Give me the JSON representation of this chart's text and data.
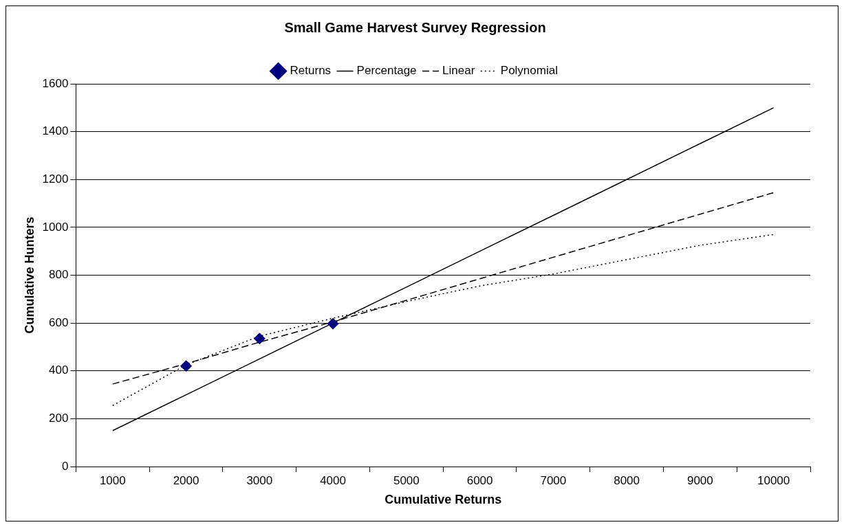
{
  "chart_data": {
    "type": "line",
    "title": "Small Game Harvest Survey Regression",
    "xlabel": "Cumulative Returns",
    "ylabel": "Cumulative Hunters",
    "categories": [
      "1000",
      "2000",
      "3000",
      "4000",
      "5000",
      "6000",
      "7000",
      "8000",
      "9000",
      "10000"
    ],
    "series": [
      {
        "name": "Returns",
        "type": "scatter",
        "color": "#000080",
        "marker": "diamond",
        "values": [
          null,
          420,
          535,
          597,
          null,
          null,
          null,
          null,
          null,
          null
        ]
      },
      {
        "name": "Percentage",
        "color": "#000000",
        "line_style": "solid",
        "values": [
          150,
          300,
          450,
          600,
          750,
          900,
          1050,
          1200,
          1350,
          1500
        ]
      },
      {
        "name": "Linear",
        "color": "#000000",
        "line_style": "dashed",
        "values": [
          345,
          430,
          520,
          605,
          695,
          785,
          875,
          965,
          1055,
          1145
        ]
      },
      {
        "name": "Polynomial",
        "color": "#000000",
        "line_style": "dotted",
        "values": [
          255,
          425,
          545,
          620,
          690,
          755,
          805,
          865,
          925,
          970
        ]
      }
    ],
    "ylim": [
      0,
      1600
    ],
    "yticks": [
      0,
      200,
      400,
      600,
      800,
      1000,
      1200,
      1400,
      1600
    ],
    "grid": "y",
    "legend": "top"
  }
}
